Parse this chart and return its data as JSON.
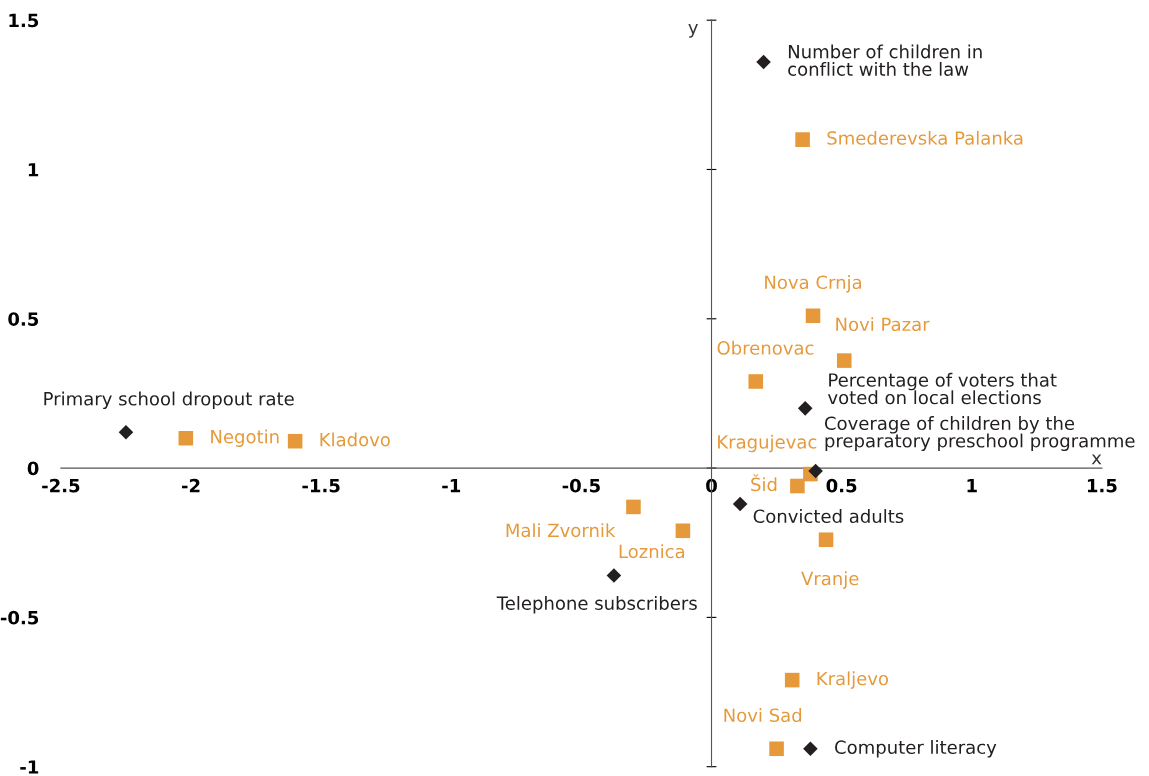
{
  "chart_data": {
    "type": "scatter",
    "xlabel": "x",
    "ylabel": "y",
    "xlim": [
      -2.5,
      1.5
    ],
    "ylim": [
      -1,
      1.5
    ],
    "xticks": [
      -2.5,
      -2,
      -1.5,
      -1,
      -0.5,
      0,
      0.5,
      1,
      1.5
    ],
    "yticks": [
      -1,
      -0.5,
      0,
      0.5,
      1,
      1.5
    ],
    "series": [
      {
        "color": "#231f20",
        "marker": "diamond",
        "x": [
          0.2,
          0.36,
          -2.25,
          0.4,
          0.11,
          -0.375,
          0.38
        ],
        "values": [
          1.36,
          0.2,
          0.12,
          -0.01,
          -0.12,
          -0.36,
          -0.94
        ]
      },
      {
        "color": "#e5993a",
        "marker": "square",
        "x": [
          0.35,
          0.39,
          0.51,
          0.17,
          -2.02,
          -1.6,
          0.38,
          0.33,
          -0.3,
          -0.11,
          0.44,
          0.31,
          0.25
        ],
        "values": [
          1.1,
          0.51,
          0.36,
          0.29,
          0.1,
          0.09,
          -0.02,
          -0.06,
          -0.13,
          -0.21,
          -0.24,
          -0.71,
          -0.94
        ]
      }
    ],
    "annotations": [
      {
        "text": "Number of children in\nconflict with the law",
        "x": 0.2,
        "y": 1.36
      },
      {
        "text": "Percentage of voters that\nvoted on local elections",
        "x": 0.36,
        "y": 0.2
      },
      {
        "text": "Primary school dropout rate",
        "x": -2.25,
        "y": 0.12
      },
      {
        "text": "Coverage of children by the\npreparatory preschool programme",
        "x": 0.4,
        "y": -0.01
      },
      {
        "text": "Convicted adults",
        "x": 0.11,
        "y": -0.12
      },
      {
        "text": "Telephone subscribers",
        "x": -0.375,
        "y": -0.36
      },
      {
        "text": "Computer literacy",
        "x": 0.38,
        "y": -0.94
      },
      {
        "text": "Smederevska Palanka",
        "x": 0.35,
        "y": 1.1
      },
      {
        "text": "Nova Crnja",
        "x": 0.39,
        "y": 0.51
      },
      {
        "text": "Novi Pazar",
        "x": 0.51,
        "y": 0.36
      },
      {
        "text": "Obrenovac",
        "x": 0.17,
        "y": 0.29
      },
      {
        "text": "Negotin",
        "x": -2.02,
        "y": 0.1
      },
      {
        "text": "Kladovo",
        "x": -1.6,
        "y": 0.09
      },
      {
        "text": "Kragujevac",
        "x": 0.38,
        "y": -0.02
      },
      {
        "text": "Šid",
        "x": 0.33,
        "y": -0.06
      },
      {
        "text": "Mali Zvornik",
        "x": -0.3,
        "y": -0.13
      },
      {
        "text": "Loznica",
        "x": -0.11,
        "y": -0.21
      },
      {
        "text": "Vranje",
        "x": 0.44,
        "y": -0.24
      },
      {
        "text": "Kraljevo",
        "x": 0.31,
        "y": -0.71
      },
      {
        "text": "Novi Sad",
        "x": 0.25,
        "y": -0.94
      }
    ]
  }
}
